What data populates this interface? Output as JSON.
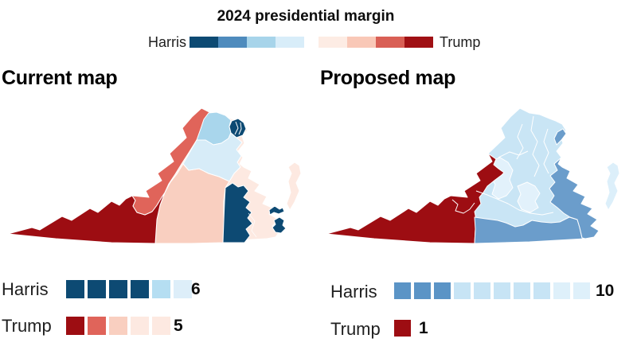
{
  "header": {
    "title": "2024 presidential margin",
    "harris_label": "Harris",
    "trump_label": "Trump",
    "scale_colors": [
      "#0d4a73",
      "#4e8bbd",
      "#a7d4ea",
      "#d8edf9",
      "#fdece4",
      "#f9c8b7",
      "#d95f55",
      "#a01014"
    ]
  },
  "maps": {
    "current": {
      "title": "Current map",
      "harris": {
        "label": "Harris",
        "count": "6",
        "swatches": [
          "#0d4a73",
          "#0d4a73",
          "#0d4a73",
          "#0d4a73",
          "#b5def2",
          "#ddeef9"
        ]
      },
      "trump": {
        "label": "Trump",
        "count": "5",
        "swatches": [
          "#9d0d12",
          "#e0645a",
          "#f9cfc0",
          "#fde9e1",
          "#fde9e1"
        ]
      },
      "colors": {
        "base_pale_pink": "#fde9e1",
        "central_peach": "#f9cfc0",
        "valley_salmon": "#e0645a",
        "southwest_dark_red": "#9d0d12",
        "north_light_blue": "#a9d6ec",
        "piedmont_pale_blue": "#d7ecf8",
        "nova_navy": "#0d4a73",
        "southside_navy": "#0d4a73",
        "tidewater_navy": "#0d4a73",
        "eastern_shore": "#fde9e1"
      }
    },
    "proposed": {
      "title": "Proposed map",
      "harris": {
        "label": "Harris",
        "count": "10",
        "swatches": [
          "#5b94c6",
          "#5b94c6",
          "#5b94c6",
          "#c7e4f5",
          "#c7e4f5",
          "#c7e4f5",
          "#c7e4f5",
          "#c7e4f5",
          "#def0fa",
          "#def0fa"
        ]
      },
      "trump": {
        "label": "Trump",
        "count": "1",
        "swatches": [
          "#9d0d12"
        ]
      },
      "colors": {
        "base_light_blue": "#c9e5f5",
        "pale_patch": "#e2f1fb",
        "west_dark_red": "#9d0d12",
        "medium_blue": "#6b9dcb",
        "eastern_shore": "#dceffa"
      }
    }
  }
}
